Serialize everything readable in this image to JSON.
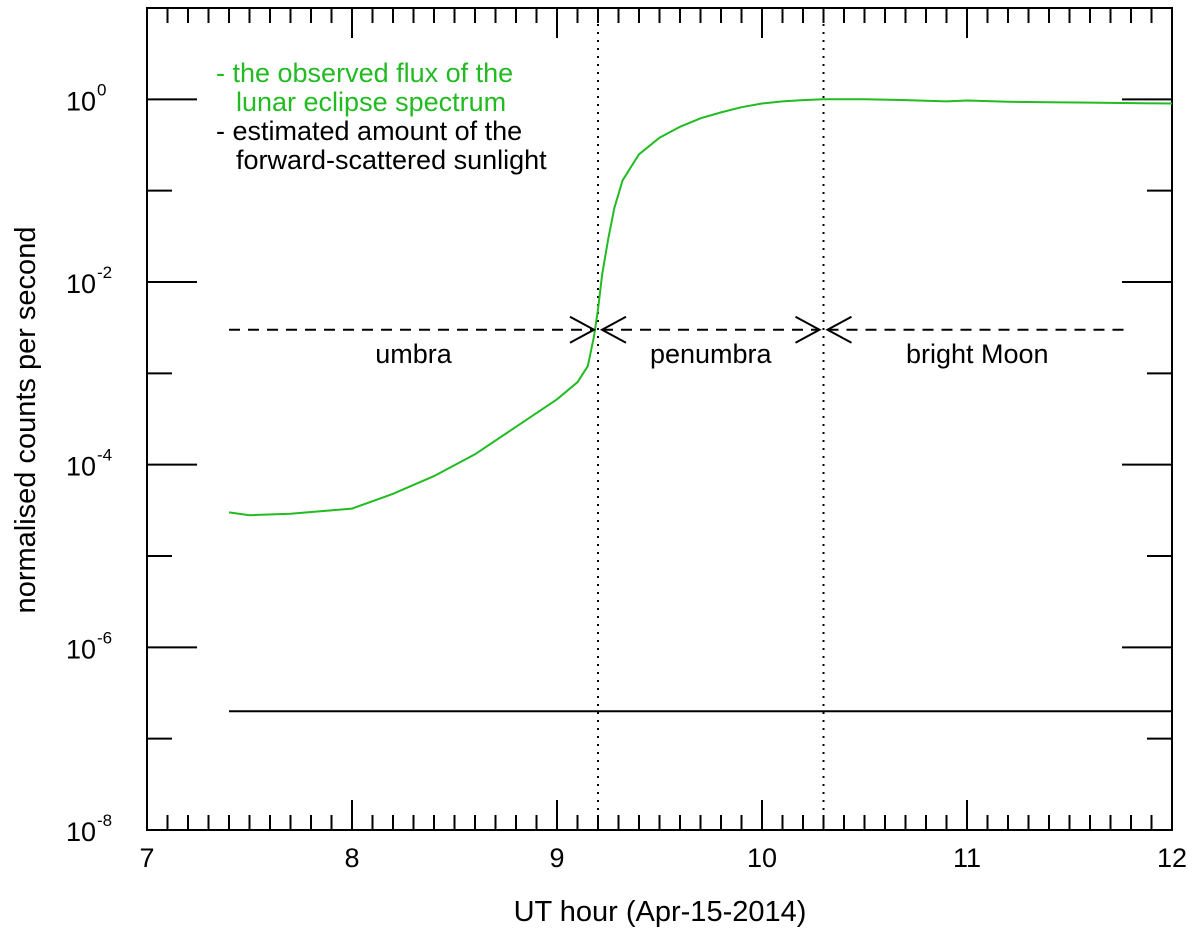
{
  "chart_data": {
    "type": "line",
    "xlabel": "UT hour (Apr-15-2014)",
    "ylabel": "normalised counts per second",
    "xlim": [
      7,
      12
    ],
    "ylim_log10": [
      -8,
      1
    ],
    "yscale": "log",
    "x_ticks": [
      "7",
      "8",
      "9",
      "10",
      "11",
      "12"
    ],
    "y_ticks": [
      {
        "base": "10",
        "exp": "-8"
      },
      {
        "base": "10",
        "exp": "-6"
      },
      {
        "base": "10",
        "exp": "-4"
      },
      {
        "base": "10",
        "exp": "-2"
      },
      {
        "base": "10",
        "exp": "0"
      }
    ],
    "legend": [
      {
        "lines": [
          "- the observed flux of the",
          "  lunar eclipse spectrum"
        ],
        "color": "#22bb22"
      },
      {
        "lines": [
          "- estimated amount of the",
          "  forward-scattered sunlight"
        ],
        "color": "#000000"
      }
    ],
    "series": [
      {
        "color": "#22bb22",
        "x": [
          7.4,
          7.5,
          7.7,
          8.0,
          8.2,
          8.4,
          8.6,
          8.8,
          9.0,
          9.1,
          9.15,
          9.18,
          9.2,
          9.22,
          9.25,
          9.28,
          9.32,
          9.4,
          9.5,
          9.6,
          9.7,
          9.8,
          9.9,
          10.0,
          10.1,
          10.2,
          10.3,
          10.5,
          10.7,
          10.9,
          11.0,
          11.2,
          11.4,
          11.6,
          11.8,
          12.0
        ],
        "y": [
          3e-05,
          2.8e-05,
          2.9e-05,
          3.3e-05,
          4.8e-05,
          7.5e-05,
          0.00013,
          0.00026,
          0.00052,
          0.0008,
          0.0012,
          0.0025,
          0.005,
          0.012,
          0.03,
          0.065,
          0.13,
          0.25,
          0.38,
          0.5,
          0.62,
          0.72,
          0.82,
          0.9,
          0.95,
          0.98,
          1.0,
          1.0,
          0.98,
          0.95,
          0.97,
          0.94,
          0.93,
          0.92,
          0.91,
          0.9
        ]
      },
      {
        "color": "#000000",
        "x": [
          7.4,
          12.0
        ],
        "y": [
          2e-07,
          2e-07
        ]
      }
    ],
    "phase_boundaries": [
      9.2,
      10.3
    ],
    "phase_marker_y": 0.003,
    "regions": [
      {
        "label": "umbra",
        "x_start": 7.4,
        "x_end": 9.2
      },
      {
        "label": "penumbra",
        "x_start": 9.2,
        "x_end": 10.3
      },
      {
        "label": "bright Moon",
        "x_start": 10.3,
        "x_end": 11.8
      }
    ]
  }
}
